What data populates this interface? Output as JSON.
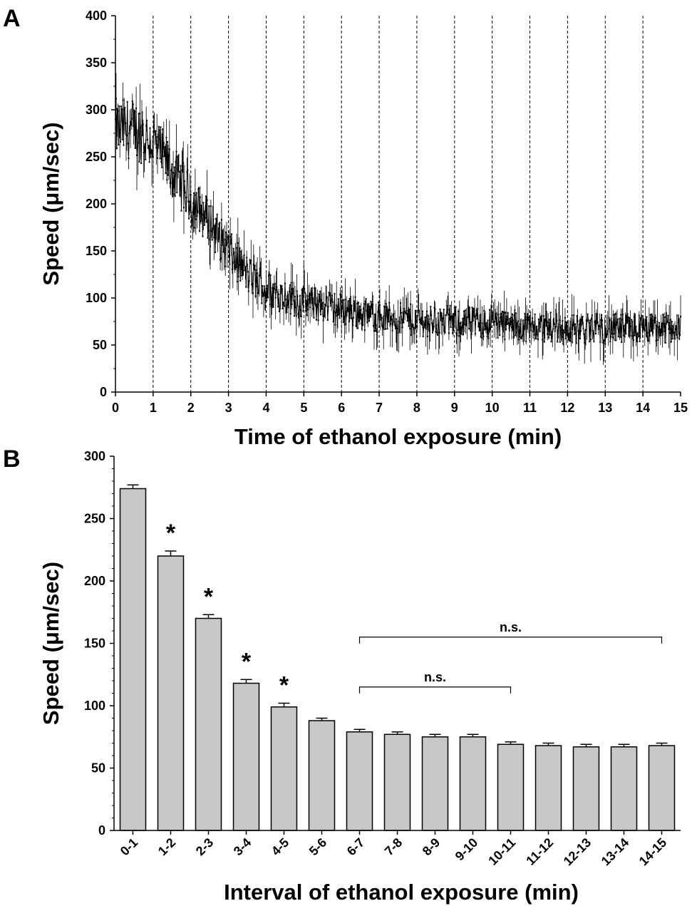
{
  "chart_data": [
    {
      "panel": "A",
      "type": "line",
      "xlabel": "Time of ethanol exposure (min)",
      "ylabel": "Speed (μm/sec)",
      "xlim": [
        0,
        15
      ],
      "ylim": [
        0,
        400
      ],
      "xticks": [
        "0",
        "1",
        "2",
        "3",
        "4",
        "5",
        "6",
        "7",
        "8",
        "9",
        "10",
        "11",
        "12",
        "13",
        "14",
        "15"
      ],
      "yticks": [
        "0",
        "50",
        "100",
        "150",
        "200",
        "250",
        "300",
        "350",
        "400"
      ],
      "vertical_dashed_gridlines": true,
      "error_bars": true,
      "mean_trend": {
        "x": [
          0,
          0.5,
          1,
          1.5,
          2,
          2.5,
          3,
          3.5,
          4,
          5,
          6,
          7,
          8,
          9,
          10,
          11,
          12,
          13,
          14,
          15
        ],
        "y": [
          280,
          280,
          265,
          235,
          205,
          180,
          150,
          125,
          110,
          95,
          88,
          80,
          76,
          75,
          73,
          70,
          67,
          67,
          67,
          68
        ]
      },
      "noise_amplitude": 32,
      "error_bar_max": 40
    },
    {
      "panel": "B",
      "type": "bar",
      "xlabel": "Interval of ethanol exposure (min)",
      "ylabel": "Speed (μm/sec)",
      "ylim": [
        0,
        300
      ],
      "yticks": [
        "0",
        "50",
        "100",
        "150",
        "200",
        "250",
        "300"
      ],
      "categories": [
        "0-1",
        "1-2",
        "2-3",
        "3-4",
        "4-5",
        "5-6",
        "6-7",
        "7-8",
        "8-9",
        "9-10",
        "10-11",
        "11-12",
        "12-13",
        "13-14",
        "14-15"
      ],
      "values": [
        274,
        220,
        170,
        118,
        99,
        88,
        79,
        77,
        75,
        75,
        69,
        68,
        67,
        67,
        68
      ],
      "errors": [
        3,
        4,
        3,
        3,
        3,
        2,
        2,
        2,
        2,
        2,
        2,
        2,
        2,
        2,
        2
      ],
      "significance": [
        "",
        "*",
        "*",
        "*",
        "*",
        "",
        "",
        "",
        "",
        "",
        "",
        "",
        "",
        "",
        ""
      ],
      "brackets": [
        {
          "from": "6-7",
          "to": "10-11",
          "label": "n.s.",
          "y": 115
        },
        {
          "from": "6-7",
          "to": "14-15",
          "label": "n.s.",
          "y": 155
        }
      ]
    }
  ],
  "panels": {
    "a": {
      "letter": "A"
    },
    "b": {
      "letter": "B"
    }
  }
}
